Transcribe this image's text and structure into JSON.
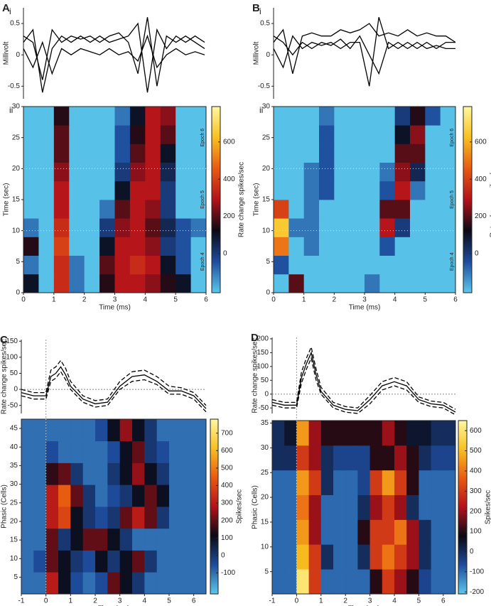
{
  "chart_data": [
    {
      "type": "line",
      "panel": "A",
      "label": "i",
      "ylabel": "Millivolt",
      "ylim": [
        -0.7,
        0.75
      ],
      "yticks": [
        -0.5,
        0,
        0.5
      ],
      "series": [
        {
          "color": "#000000",
          "values": [
            0.3,
            0.2,
            -0.4,
            0.4,
            0.2,
            0.3,
            0.25,
            0.3,
            0.2,
            0.3,
            0.35,
            0.2,
            -0.3,
            0.6,
            -0.5,
            0.3,
            0.2,
            0.3,
            0.2,
            0.1
          ]
        },
        {
          "color": "#000000",
          "values": [
            0.2,
            0.4,
            -0.6,
            0.1,
            0.3,
            0.2,
            0.3,
            0.2,
            0.3,
            0.2,
            0.25,
            0.3,
            0.5,
            -0.6,
            0.4,
            0.1,
            0.3,
            0.2,
            0.3,
            0.2
          ]
        },
        {
          "color": "#000000",
          "values": [
            0.1,
            -0.2,
            0.2,
            -0.3,
            0.1,
            0,
            0.1,
            0.05,
            0,
            0.1,
            0,
            0.05,
            -0.1,
            0.3,
            -0.2,
            0,
            0.1,
            0,
            0.05,
            0
          ]
        }
      ]
    },
    {
      "type": "heatmap",
      "label": "ii",
      "xlabel": "Time (ms)",
      "ylabel": "Time (sec)",
      "colorbar_label": "Rate change spikes/sec",
      "xlim": [
        0,
        6
      ],
      "xticks": [
        0,
        1,
        2,
        3,
        4,
        5,
        6
      ],
      "ylim": [
        0,
        30
      ],
      "yticks": [
        0,
        5,
        10,
        15,
        20,
        25,
        30
      ],
      "clim": [
        -210,
        790
      ],
      "cticks": [
        0,
        200,
        400,
        600
      ],
      "hlines": [
        10,
        20
      ],
      "annotations": [
        "Epoch 4",
        "Epoch 5",
        "Epoch 6"
      ],
      "colormap": [
        "#5cc8ec",
        "#1e4c9c",
        "#0a0a14",
        "#b3121a",
        "#e85a12",
        "#f8c020",
        "#fff8a0"
      ],
      "z": [
        [
          100,
          -200,
          350,
          -100,
          -200,
          150,
          300,
          300,
          250,
          150,
          100,
          -200
        ],
        [
          -100,
          -200,
          350,
          -100,
          -200,
          200,
          300,
          350,
          300,
          100,
          -50,
          -200
        ],
        [
          150,
          -200,
          400,
          -200,
          -200,
          100,
          300,
          300,
          250,
          0,
          -50,
          -200
        ],
        [
          -100,
          -200,
          350,
          -200,
          -200,
          0,
          250,
          300,
          200,
          50,
          -50,
          -100
        ],
        [
          -200,
          -200,
          300,
          -200,
          -200,
          -100,
          200,
          300,
          250,
          0,
          -200,
          -200
        ],
        [
          -200,
          -200,
          300,
          -200,
          -200,
          -200,
          100,
          300,
          300,
          0,
          -200,
          -200
        ],
        [
          -200,
          -200,
          250,
          -200,
          -200,
          -200,
          0,
          250,
          300,
          50,
          -200,
          -200
        ],
        [
          -200,
          -200,
          200,
          -200,
          -200,
          -200,
          -50,
          200,
          300,
          100,
          -200,
          -200
        ],
        [
          -200,
          -200,
          200,
          -200,
          -200,
          -200,
          -50,
          150,
          300,
          200,
          -200,
          -200
        ],
        [
          -200,
          -200,
          150,
          -200,
          -200,
          -200,
          -100,
          100,
          300,
          250,
          -200,
          -200
        ]
      ]
    },
    {
      "type": "line",
      "panel": "B",
      "label": "i",
      "ylabel": "Millivolt",
      "ylim": [
        -0.7,
        0.75
      ],
      "yticks": [
        -0.5,
        0,
        0.5
      ],
      "series": [
        {
          "color": "#000000",
          "values": [
            0.2,
            0.4,
            -0.3,
            0.3,
            0.35,
            0.3,
            0.3,
            0.4,
            0.35,
            0.4,
            0.5,
            0.3,
            0.35,
            0.3,
            0.4,
            0.3,
            0.35,
            0.3,
            0.3,
            0.2
          ]
        },
        {
          "color": "#000000",
          "values": [
            0.1,
            -0.2,
            0.3,
            0.1,
            0.2,
            0.15,
            0.2,
            0.1,
            0.2,
            0.2,
            -0.5,
            0.6,
            0.1,
            0.2,
            0.1,
            0.2,
            0.1,
            0.15,
            0.1,
            0.1
          ]
        },
        {
          "color": "#000000",
          "values": [
            0.3,
            0.2,
            0,
            0.2,
            0.1,
            0.2,
            0.15,
            0.25,
            0.1,
            0.3,
            0,
            -0.3,
            0.2,
            0.1,
            0.2,
            0.1,
            0.2,
            0.1,
            0.2,
            0.2
          ]
        }
      ]
    },
    {
      "type": "heatmap",
      "label": "ii",
      "xlabel": "Time (ms)",
      "ylabel": "Time (sec)",
      "colorbar_label": "Rate change spikes/sec",
      "xlim": [
        0,
        6
      ],
      "xticks": [
        0,
        1,
        2,
        3,
        4,
        5,
        6
      ],
      "ylim": [
        0,
        30
      ],
      "yticks": [
        0,
        5,
        10,
        15,
        20,
        25,
        30
      ],
      "clim": [
        -210,
        790
      ],
      "cticks": [
        0,
        200,
        400,
        600
      ],
      "hlines": [
        10,
        20
      ],
      "annotations": [
        "Epoch 4",
        "Epoch 5",
        "Epoch 6"
      ],
      "colormap": [
        "#5cc8ec",
        "#1e4c9c",
        "#0a0a14",
        "#b3121a",
        "#e85a12",
        "#f8c020",
        "#fff8a0"
      ],
      "z": [
        [
          -200,
          200,
          -200,
          -200,
          -200,
          -200,
          -100,
          -200,
          -200,
          -200,
          -200,
          -200
        ],
        [
          -50,
          -200,
          -200,
          -200,
          -200,
          -200,
          -200,
          -200,
          -200,
          -200,
          -200,
          -200
        ],
        [
          500,
          -200,
          -100,
          -200,
          -200,
          -200,
          -200,
          -50,
          -200,
          -200,
          -200,
          -200
        ],
        [
          650,
          -100,
          -100,
          -200,
          -200,
          -200,
          -200,
          300,
          0,
          -200,
          -200,
          -200
        ],
        [
          400,
          -200,
          -100,
          -200,
          -200,
          -200,
          -200,
          200,
          200,
          -200,
          -200,
          -200
        ],
        [
          -200,
          -200,
          -100,
          -50,
          -200,
          -200,
          -200,
          -50,
          300,
          -100,
          -200,
          -200
        ],
        [
          -200,
          -200,
          -100,
          -50,
          -200,
          -200,
          -200,
          -100,
          250,
          50,
          -200,
          -200
        ],
        [
          -200,
          -200,
          -200,
          -50,
          -200,
          -200,
          -200,
          -200,
          200,
          200,
          -200,
          -200
        ],
        [
          -200,
          -200,
          -200,
          -50,
          -200,
          -200,
          -200,
          -200,
          100,
          250,
          -200,
          -200
        ],
        [
          -200,
          -200,
          -200,
          -100,
          -200,
          -200,
          -200,
          -200,
          0,
          150,
          -50,
          -200
        ]
      ]
    },
    {
      "type": "line",
      "panel": "C",
      "ylabel": "Rate change spikes/sec",
      "xlim": [
        -1,
        6.5
      ],
      "ylim": [
        -75,
        155
      ],
      "yticks": [
        -50,
        0,
        50,
        100,
        150
      ],
      "hlines": [
        0
      ],
      "vlines": [
        0
      ],
      "x": [
        -1,
        -0.5,
        0,
        0.2,
        0.4,
        0.6,
        0.8,
        1,
        1.5,
        2,
        2.5,
        3,
        3.5,
        4,
        4.5,
        5,
        5.5,
        6,
        6.5
      ],
      "series": [
        {
          "color": "#000000",
          "style": "solid",
          "values": [
            -10,
            -20,
            -20,
            40,
            50,
            70,
            45,
            10,
            -30,
            -45,
            -40,
            10,
            40,
            45,
            25,
            -5,
            -5,
            -20,
            -60
          ]
        },
        {
          "color": "#000000",
          "style": "dashed",
          "values": [
            0,
            -10,
            -10,
            60,
            70,
            90,
            65,
            25,
            -20,
            -35,
            -30,
            25,
            55,
            60,
            40,
            10,
            5,
            -10,
            -50
          ]
        },
        {
          "color": "#000000",
          "style": "dashed",
          "values": [
            -20,
            -30,
            -30,
            25,
            35,
            55,
            30,
            0,
            -40,
            -55,
            -50,
            0,
            25,
            30,
            15,
            -15,
            -15,
            -30,
            -70
          ]
        }
      ]
    },
    {
      "type": "heatmap",
      "xlabel": "Time (ms)",
      "ylabel": "Phasic (Cells)",
      "colorbar_label": "Spikes/sec",
      "xlim": [
        -1,
        6.5
      ],
      "xticks": [
        -1,
        0,
        1,
        2,
        3,
        4,
        5,
        6
      ],
      "ylim": [
        0.5,
        47.5
      ],
      "yticks": [
        5,
        10,
        15,
        20,
        25,
        30,
        35,
        40,
        45
      ],
      "clim": [
        -220,
        780
      ],
      "cticks": [
        -100,
        0,
        100,
        200,
        300,
        400,
        500,
        600,
        700
      ],
      "vlines": [
        0
      ],
      "colormap": [
        "#5cc8ec",
        "#1e4c9c",
        "#0a0a14",
        "#b3121a",
        "#e85a12",
        "#f8c020",
        "#fff8a0"
      ],
      "z": [
        [
          -100,
          -100,
          300,
          100,
          -50,
          -100,
          -50,
          200,
          100,
          0,
          -100,
          -100,
          -100,
          -100,
          -100
        ],
        [
          -100,
          -50,
          200,
          100,
          0,
          -50,
          100,
          0,
          100,
          200,
          0,
          -100,
          -100,
          -100,
          -100
        ],
        [
          -100,
          -100,
          200,
          0,
          100,
          200,
          200,
          100,
          0,
          -100,
          -100,
          -100,
          -100,
          -100,
          -100
        ],
        [
          -100,
          -100,
          300,
          400,
          100,
          0,
          -50,
          0,
          200,
          300,
          200,
          0,
          -100,
          -100,
          -100
        ],
        [
          -100,
          -100,
          300,
          450,
          200,
          0,
          -100,
          -50,
          0,
          100,
          200,
          100,
          -100,
          -100,
          -100
        ],
        [
          -100,
          -100,
          150,
          200,
          0,
          -100,
          -100,
          0,
          100,
          250,
          100,
          0,
          -100,
          -100,
          -100
        ],
        [
          -100,
          -100,
          -50,
          -100,
          -100,
          -100,
          -100,
          -50,
          100,
          200,
          0,
          -50,
          -100,
          -100,
          -100
        ],
        [
          -100,
          -100,
          -100,
          -100,
          -100,
          -100,
          -50,
          100,
          250,
          100,
          0,
          -100,
          -100,
          -100,
          -100
        ]
      ]
    },
    {
      "type": "line",
      "panel": "D",
      "ylabel": "Rate change spikes/sec",
      "xlim": [
        -1,
        6.5
      ],
      "ylim": [
        -70,
        205
      ],
      "yticks": [
        -50,
        0,
        50,
        100,
        150,
        200
      ],
      "hlines": [
        0
      ],
      "vlines": [
        0
      ],
      "x": [
        -1,
        -0.5,
        0,
        0.2,
        0.4,
        0.6,
        0.8,
        1,
        1.5,
        2,
        2.5,
        3,
        3.5,
        4,
        4.5,
        5,
        5.5,
        6,
        6.5
      ],
      "series": [
        {
          "color": "#000000",
          "style": "solid",
          "values": [
            -30,
            -40,
            -40,
            60,
            110,
            150,
            70,
            10,
            -40,
            -55,
            -60,
            -20,
            30,
            45,
            30,
            -20,
            -35,
            -40,
            -65
          ]
        },
        {
          "color": "#000000",
          "style": "dashed",
          "values": [
            -20,
            -30,
            -30,
            80,
            130,
            170,
            90,
            25,
            -30,
            -45,
            -50,
            -5,
            45,
            60,
            45,
            -10,
            -25,
            -30,
            -55
          ]
        },
        {
          "color": "#000000",
          "style": "dashed",
          "values": [
            -40,
            -50,
            -50,
            40,
            90,
            130,
            50,
            0,
            -50,
            -65,
            -70,
            -35,
            15,
            30,
            15,
            -30,
            -45,
            -50,
            -75
          ]
        }
      ]
    },
    {
      "type": "heatmap",
      "xlabel": "Time (ms)",
      "ylabel": "Phasic (Cells)",
      "colorbar_label": "Spikes/sec",
      "xlim": [
        -1,
        6.5
      ],
      "xticks": [
        -1,
        0,
        1,
        2,
        3,
        4,
        5,
        6
      ],
      "ylim": [
        0.5,
        35.5
      ],
      "yticks": [
        5,
        10,
        15,
        20,
        25,
        30,
        35
      ],
      "clim": [
        -210,
        650
      ],
      "cticks": [
        -200,
        -100,
        0,
        100,
        200,
        300,
        400,
        500,
        600
      ],
      "vlines": [
        0
      ],
      "colormap": [
        "#5cc8ec",
        "#1e4c9c",
        "#0a0a14",
        "#b3121a",
        "#e85a12",
        "#f8c020",
        "#fff8a0"
      ],
      "z": [
        [
          -100,
          -100,
          600,
          300,
          -100,
          -100,
          -100,
          -100,
          100,
          300,
          200,
          100,
          -50,
          -100,
          -100
        ],
        [
          -100,
          -100,
          500,
          300,
          0,
          -100,
          -100,
          0,
          300,
          400,
          300,
          200,
          0,
          -100,
          -100
        ],
        [
          -100,
          -100,
          450,
          200,
          -100,
          -100,
          -100,
          100,
          300,
          300,
          400,
          200,
          0,
          -100,
          -100
        ],
        [
          -100,
          -100,
          400,
          200,
          -100,
          -100,
          -100,
          0,
          200,
          300,
          200,
          0,
          -100,
          -100,
          -100
        ],
        [
          -100,
          -100,
          450,
          300,
          0,
          -100,
          -100,
          -50,
          300,
          450,
          300,
          100,
          -100,
          -100,
          -100
        ],
        [
          0,
          0,
          300,
          200,
          0,
          -50,
          -50,
          -50,
          100,
          100,
          200,
          100,
          0,
          -50,
          -50
        ],
        [
          0,
          50,
          450,
          200,
          100,
          100,
          100,
          100,
          100,
          200,
          100,
          50,
          50,
          0,
          0
        ]
      ]
    }
  ]
}
